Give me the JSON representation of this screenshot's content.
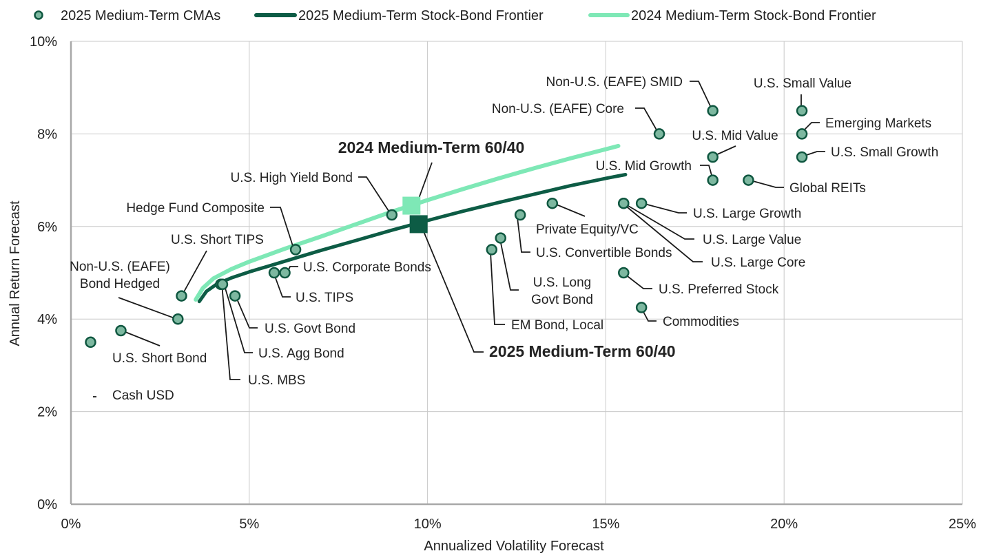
{
  "chart_data": {
    "type": "scatter",
    "xlabel": "Annualized Volatility Forecast",
    "ylabel": "Annual Return Forecast",
    "xlim": [
      0,
      25
    ],
    "ylim": [
      0,
      10
    ],
    "xticks": [
      0,
      5,
      10,
      15,
      20,
      25
    ],
    "yticks": [
      0,
      2,
      4,
      6,
      8,
      10
    ],
    "xtick_labels": [
      "0%",
      "5%",
      "10%",
      "15%",
      "20%",
      "25%"
    ],
    "ytick_labels": [
      "0%",
      "2%",
      "4%",
      "6%",
      "8%",
      "10%"
    ],
    "grid": true,
    "legend_position": "top",
    "legend": [
      {
        "label": "2025 Medium-Term CMAs",
        "kind": "marker"
      },
      {
        "label": "2025 Medium-Term Stock-Bond Frontier",
        "kind": "line-2025"
      },
      {
        "label": "2024 Medium-Term Stock-Bond Frontier",
        "kind": "line-2024"
      }
    ],
    "colors": {
      "marker_fill": "#7db8a0",
      "marker_edge": "#0f5740",
      "frontier_2025": "#0d5c45",
      "frontier_2024": "#7ee8b6",
      "grid": "#c8c8c8",
      "axis": "#a8a8a8"
    },
    "points": [
      {
        "name": "Cash USD",
        "x": 0.55,
        "y": 3.5
      },
      {
        "name": "U.S. Short Bond",
        "x": 1.4,
        "y": 3.75
      },
      {
        "name": "Non-U.S. (EAFE) Bond Hedged",
        "x": 3.0,
        "y": 4.0
      },
      {
        "name": "U.S. Short TIPS",
        "x": 3.1,
        "y": 4.5
      },
      {
        "name": "U.S. MBS",
        "x": 4.2,
        "y": 4.75
      },
      {
        "name": "U.S. Agg Bond",
        "x": 4.25,
        "y": 4.75
      },
      {
        "name": "U.S. Govt Bond",
        "x": 4.6,
        "y": 4.5
      },
      {
        "name": "U.S. TIPS",
        "x": 5.7,
        "y": 5.0
      },
      {
        "name": "U.S. Corporate Bonds",
        "x": 6.0,
        "y": 5.0
      },
      {
        "name": "Hedge Fund Composite",
        "x": 6.3,
        "y": 5.5
      },
      {
        "name": "U.S. High Yield Bond",
        "x": 9.0,
        "y": 6.25
      },
      {
        "name": "EM Bond, Local",
        "x": 11.8,
        "y": 5.5
      },
      {
        "name": "U.S. Long Govt Bond",
        "x": 12.05,
        "y": 5.75
      },
      {
        "name": "U.S. Convertible Bonds",
        "x": 12.6,
        "y": 6.25
      },
      {
        "name": "Private Equity/VC",
        "x": 13.5,
        "y": 6.5
      },
      {
        "name": "U.S. Preferred Stock",
        "x": 15.5,
        "y": 5.0
      },
      {
        "name": "Commodities",
        "x": 16.0,
        "y": 4.25
      },
      {
        "name": "U.S. Large Value",
        "x": 15.5,
        "y": 6.5
      },
      {
        "name": "U.S. Large Core",
        "x": 15.5,
        "y": 6.5
      },
      {
        "name": "U.S. Large Growth",
        "x": 16.0,
        "y": 6.5
      },
      {
        "name": "Non-U.S. (EAFE) Core",
        "x": 16.5,
        "y": 8.0
      },
      {
        "name": "Non-U.S. (EAFE) SMID",
        "x": 18.0,
        "y": 8.5
      },
      {
        "name": "U.S. Mid Value",
        "x": 18.0,
        "y": 7.5
      },
      {
        "name": "U.S. Mid Growth",
        "x": 18.0,
        "y": 7.0
      },
      {
        "name": "Global REITs",
        "x": 19.0,
        "y": 7.0
      },
      {
        "name": "U.S. Small Value",
        "x": 20.5,
        "y": 8.5
      },
      {
        "name": "Emerging Markets",
        "x": 20.5,
        "y": 8.0
      },
      {
        "name": "U.S. Small Growth",
        "x": 20.5,
        "y": 7.5
      }
    ],
    "frontiers": [
      {
        "label": "2024 Medium-Term Stock-Bond Frontier",
        "key": "f2024",
        "x": [
          3.5,
          3.7,
          4.0,
          4.5,
          5.0,
          6.0,
          7.0,
          8.0,
          9.0,
          10.0,
          11.0,
          12.0,
          13.0,
          14.0,
          15.0,
          15.35
        ],
        "y": [
          4.42,
          4.67,
          4.88,
          5.08,
          5.24,
          5.52,
          5.78,
          6.05,
          6.32,
          6.57,
          6.81,
          7.04,
          7.26,
          7.47,
          7.67,
          7.74
        ]
      },
      {
        "label": "2025 Medium-Term Stock-Bond Frontier",
        "key": "f2025",
        "x": [
          3.6,
          3.8,
          4.1,
          4.5,
          5.0,
          6.0,
          7.0,
          8.0,
          9.0,
          10.0,
          11.0,
          12.0,
          13.0,
          14.0,
          15.0,
          15.55
        ],
        "y": [
          4.38,
          4.6,
          4.76,
          4.89,
          5.02,
          5.25,
          5.48,
          5.7,
          5.92,
          6.13,
          6.33,
          6.52,
          6.7,
          6.88,
          7.04,
          7.12
        ]
      }
    ],
    "portfolios": [
      {
        "name": "2024 Medium-Term 60/40",
        "x": 9.55,
        "y": 6.45,
        "key": "p2024"
      },
      {
        "name": "2025 Medium-Term 60/40",
        "x": 9.75,
        "y": 6.05,
        "key": "p2025"
      }
    ]
  }
}
